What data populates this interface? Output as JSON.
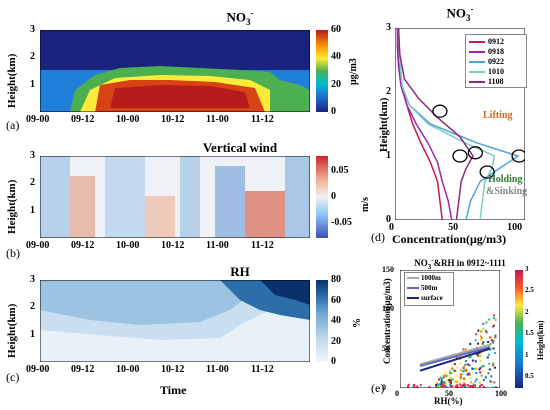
{
  "colors": {
    "viridis_like": [
      "#1a237e",
      "#1976d2",
      "#00bcd4",
      "#4caf50",
      "#cddc39",
      "#ffeb3b",
      "#ff9800",
      "#d84315",
      "#b71c1c"
    ],
    "diverging": [
      "#3f51b5",
      "#90caf9",
      "#f0f0f0",
      "#f4b39a",
      "#c62828"
    ],
    "blues": [
      "#f4f8fc",
      "#bcd6ea",
      "#6ea5cf",
      "#2b6ea9",
      "#08306b"
    ]
  },
  "chart_data": [
    {
      "panel": "(a)",
      "type": "heatmap",
      "title": "NO3-",
      "ylabel": "Height(km)",
      "yticks": [
        "1",
        "2",
        "3"
      ],
      "xticks": [
        "09-00",
        "09-12",
        "10-00",
        "10-12",
        "11-00",
        "11-12"
      ],
      "colorbar_ticks": [
        "0",
        "20",
        "40",
        "60"
      ],
      "colorbar_label": "μg/m3",
      "ylim": [
        0,
        3
      ],
      "clim": [
        0,
        60
      ]
    },
    {
      "panel": "(b)",
      "type": "heatmap",
      "title": "Vertical wind",
      "ylabel": "Height(km)",
      "yticks": [
        "1",
        "2",
        "3"
      ],
      "xticks": [
        "09-00",
        "09-12",
        "10-00",
        "10-12",
        "11-00",
        "11-12"
      ],
      "colorbar_ticks": [
        "-0.05",
        "0",
        "0.05"
      ],
      "colorbar_label": "m/s",
      "ylim": [
        0,
        3
      ],
      "clim": [
        -0.08,
        0.08
      ]
    },
    {
      "panel": "(c)",
      "type": "heatmap",
      "title": "RH",
      "ylabel": "Height(km)",
      "xlabel": "Time",
      "yticks": [
        "1",
        "2",
        "3"
      ],
      "xticks": [
        "09-00",
        "09-12",
        "10-00",
        "10-12",
        "11-00",
        "11-12"
      ],
      "colorbar_ticks": [
        "0",
        "20",
        "40",
        "60",
        "80"
      ],
      "colorbar_label": "%",
      "ylim": [
        0,
        3
      ],
      "clim": [
        0,
        80
      ]
    },
    {
      "panel": "(d)",
      "type": "line",
      "title": "NO3-",
      "xlabel": "Concentration(μg/m3)",
      "ylabel": "Height(km)",
      "xticks": [
        "0",
        "50",
        "100"
      ],
      "yticks": [
        "0",
        "1",
        "2",
        "3"
      ],
      "xlim": [
        0,
        110
      ],
      "ylim": [
        0,
        3
      ],
      "series": [
        {
          "name": "0912",
          "color": "#c2185b",
          "x": [
            40,
            38,
            36,
            30,
            22,
            15,
            10,
            6,
            4,
            3,
            2
          ],
          "y": [
            0,
            0.3,
            0.6,
            0.9,
            1.2,
            1.5,
            1.8,
            2.1,
            2.4,
            2.7,
            3.0
          ]
        },
        {
          "name": "0918",
          "color": "#9c27b0",
          "x": [
            48,
            45,
            40,
            36,
            28,
            18,
            10,
            5,
            3,
            2,
            2
          ],
          "y": [
            0,
            0.3,
            0.6,
            0.9,
            1.2,
            1.5,
            1.8,
            2.1,
            2.4,
            2.7,
            3.0
          ]
        },
        {
          "name": "0922",
          "color": "#4fa3e0",
          "x": [
            60,
            64,
            72,
            88,
            104,
            70,
            30,
            12,
            6,
            4,
            3
          ],
          "y": [
            0,
            0.3,
            0.6,
            0.8,
            1.0,
            1.2,
            1.5,
            1.8,
            2.1,
            2.5,
            3.0
          ]
        },
        {
          "name": "1010",
          "color": "#80cbc4",
          "x": [
            72,
            74,
            76,
            82,
            84,
            60,
            28,
            12,
            6,
            4,
            3
          ],
          "y": [
            0,
            0.3,
            0.6,
            0.8,
            1.0,
            1.2,
            1.5,
            1.8,
            2.1,
            2.5,
            3.0
          ]
        },
        {
          "name": "1108",
          "color": "#8e2a7a",
          "x": [
            52,
            54,
            56,
            60,
            66,
            55,
            36,
            20,
            8,
            4,
            3
          ],
          "y": [
            0,
            0.3,
            0.6,
            0.8,
            1.0,
            1.3,
            1.6,
            1.9,
            2.2,
            2.6,
            3.0
          ]
        }
      ],
      "annotations": [
        "Lifting",
        "Holding",
        "&Sinking"
      ]
    },
    {
      "panel": "(e)",
      "type": "scatter",
      "title": "NO3-&RH in 0912~1111",
      "xlabel": "RH(%)",
      "ylabel": "Concentration(μg/m3)",
      "xticks": [
        "0",
        "50",
        "100"
      ],
      "yticks": [
        "0",
        "50",
        "100",
        "150"
      ],
      "xlim": [
        0,
        100
      ],
      "ylim": [
        0,
        150
      ],
      "colorbar_label": "Height(km)",
      "colorbar_ticks": [
        "0.5",
        "1",
        "1.5",
        "2",
        "2.5",
        "3"
      ],
      "series": [
        {
          "name": "1000m",
          "color": "#aaaaaa",
          "x": [
            20,
            90
          ],
          "y": [
            30,
            55
          ]
        },
        {
          "name": "500m",
          "color": "#5c6bc0",
          "x": [
            20,
            90
          ],
          "y": [
            28,
            52
          ]
        },
        {
          "name": "surface",
          "color": "#1a237e",
          "x": [
            20,
            90
          ],
          "y": [
            22,
            50
          ]
        }
      ]
    }
  ],
  "legend_d": [
    "0912",
    "0918",
    "0922",
    "1010",
    "1108"
  ],
  "legend_e": [
    "1000m",
    "500m",
    "surface"
  ]
}
